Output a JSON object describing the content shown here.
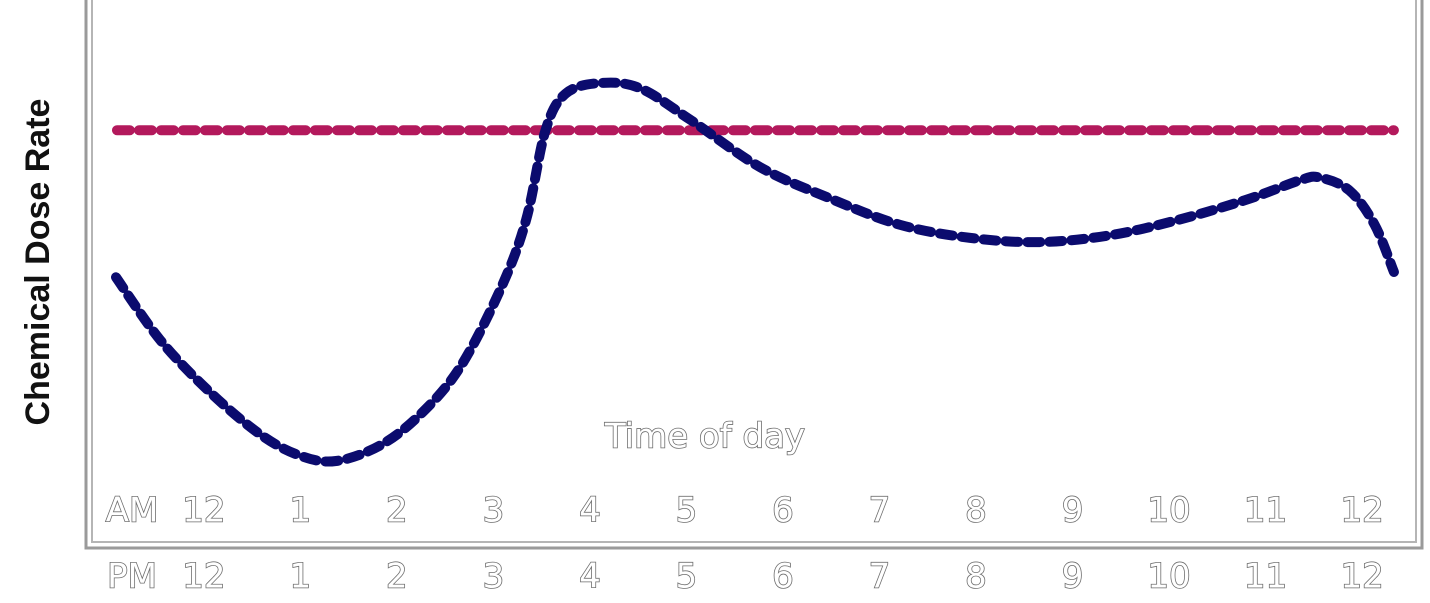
{
  "chart_data": {
    "type": "line",
    "y_label": "Chemical Dose Rate",
    "annotation": "Time of day",
    "row_labels": [
      "AM",
      "PM"
    ],
    "xlim": [
      -1.2,
      12.6
    ],
    "ylim": [
      0,
      100
    ],
    "xticks": [
      {
        "value": 0,
        "label": "12"
      },
      1,
      2,
      3,
      4,
      5,
      6,
      7,
      8,
      9,
      10,
      11,
      {
        "value": 12,
        "label": "12"
      }
    ],
    "series": [
      {
        "color": "#0b0b6e",
        "x": [
          -0.91,
          -0.45,
          0.07,
          0.59,
          1.0,
          1.37,
          1.83,
          2.25,
          2.66,
          3.08,
          3.34,
          3.54,
          3.75,
          4.11,
          4.52,
          5.04,
          5.76,
          6.49,
          7.21,
          7.94,
          8.66,
          9.39,
          10.11,
          10.84,
          11.36,
          11.56,
          11.87,
          12.13,
          12.33
        ],
        "values": [
          51,
          39,
          29,
          21,
          17,
          16,
          19,
          25,
          34,
          49,
          62,
          79,
          86,
          88,
          87,
          81,
          72,
          66,
          61,
          58.5,
          57.7,
          59,
          62,
          66,
          69.5,
          70,
          67.5,
          61,
          52
        ]
      },
      {
        "color": "#b3195c",
        "x": [
          -0.9,
          12.33
        ],
        "values": [
          79,
          79
        ]
      }
    ]
  }
}
